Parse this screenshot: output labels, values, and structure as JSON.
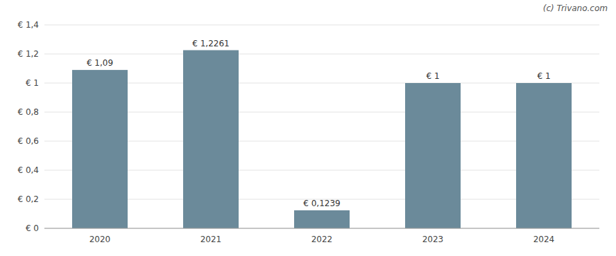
{
  "chart_data": {
    "type": "bar",
    "categories": [
      "2020",
      "2021",
      "2022",
      "2023",
      "2024"
    ],
    "values": [
      1.09,
      1.2261,
      0.1239,
      1.0,
      1.0
    ],
    "value_labels": [
      "€ 1,09",
      "€ 1,2261",
      "€ 0,1239",
      "€ 1",
      "€ 1"
    ],
    "data_labels": true,
    "color": "#6b8a9a",
    "ylim": [
      0,
      1.4
    ],
    "yticks": [
      {
        "value": 0,
        "label": "€ 0"
      },
      {
        "value": 0.2,
        "label": "€ 0,2"
      },
      {
        "value": 0.4,
        "label": "€ 0,4"
      },
      {
        "value": 0.6,
        "label": "€ 0,6"
      },
      {
        "value": 0.8,
        "label": "€ 0,8"
      },
      {
        "value": 1.0,
        "label": "€ 1"
      },
      {
        "value": 1.2,
        "label": "€ 1,2"
      },
      {
        "value": 1.4,
        "label": "€ 1,4"
      }
    ],
    "grid": true,
    "annotations": [
      "(c) Trivano.com"
    ]
  }
}
